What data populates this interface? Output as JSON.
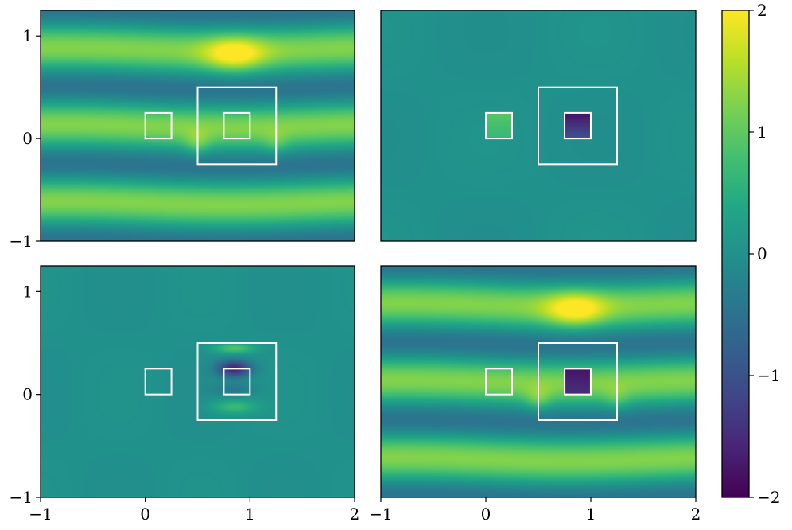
{
  "chart_data": {
    "type": "heatmap",
    "colormap": "viridis",
    "panels": [
      {
        "id": "top-left",
        "xlim": [
          -1,
          2
        ],
        "ylim": [
          -1,
          1.25
        ],
        "x_ticks": [],
        "y_ticks": [
          "−1",
          "0",
          "1"
        ],
        "field": "full",
        "boxes": [
          {
            "x0": 0.0,
            "y0": 0.0,
            "x1": 0.25,
            "y1": 0.25
          },
          {
            "x0": 0.5,
            "y0": -0.25,
            "x1": 1.25,
            "y1": 0.5
          },
          {
            "x0": 0.75,
            "y0": 0.0,
            "x1": 1.0,
            "y1": 0.25
          }
        ]
      },
      {
        "id": "top-right",
        "xlim": [
          -1,
          2
        ],
        "ylim": [
          -1,
          1.25
        ],
        "x_ticks": [],
        "y_ticks": [],
        "field": "small-patches",
        "boxes": [
          {
            "x0": 0.0,
            "y0": 0.0,
            "x1": 0.25,
            "y1": 0.25
          },
          {
            "x0": 0.5,
            "y0": -0.25,
            "x1": 1.25,
            "y1": 0.5
          },
          {
            "x0": 0.75,
            "y0": 0.0,
            "x1": 1.0,
            "y1": 0.25
          }
        ]
      },
      {
        "id": "bottom-left",
        "xlim": [
          -1,
          2
        ],
        "ylim": [
          -1,
          1.25
        ],
        "x_ticks": [
          "−1",
          "0",
          "1",
          "2"
        ],
        "y_ticks": [
          "−1",
          "0",
          "1"
        ],
        "field": "local-scatter",
        "boxes": [
          {
            "x0": 0.0,
            "y0": 0.0,
            "x1": 0.25,
            "y1": 0.25
          },
          {
            "x0": 0.5,
            "y0": -0.25,
            "x1": 1.25,
            "y1": 0.5
          },
          {
            "x0": 0.75,
            "y0": 0.0,
            "x1": 1.0,
            "y1": 0.25
          }
        ]
      },
      {
        "id": "bottom-right",
        "xlim": [
          -1,
          2
        ],
        "ylim": [
          -1,
          1.25
        ],
        "x_ticks": [
          "−1",
          "0",
          "1",
          "2"
        ],
        "y_ticks": [],
        "field": "full-with-hole",
        "boxes": [
          {
            "x0": 0.0,
            "y0": 0.0,
            "x1": 0.25,
            "y1": 0.25
          },
          {
            "x0": 0.5,
            "y0": -0.25,
            "x1": 1.25,
            "y1": 0.5
          },
          {
            "x0": 0.75,
            "y0": 0.0,
            "x1": 1.0,
            "y1": 0.25
          }
        ]
      }
    ],
    "colorbar": {
      "range": [
        -2,
        2
      ],
      "ticks": [
        -2,
        -1,
        0,
        1,
        2
      ],
      "tick_labels": [
        "−2",
        "−1",
        "0",
        "1",
        "2"
      ]
    },
    "x_tick_values": [
      -1,
      0,
      1,
      2
    ],
    "y_tick_values": [
      -1,
      0,
      1
    ]
  }
}
